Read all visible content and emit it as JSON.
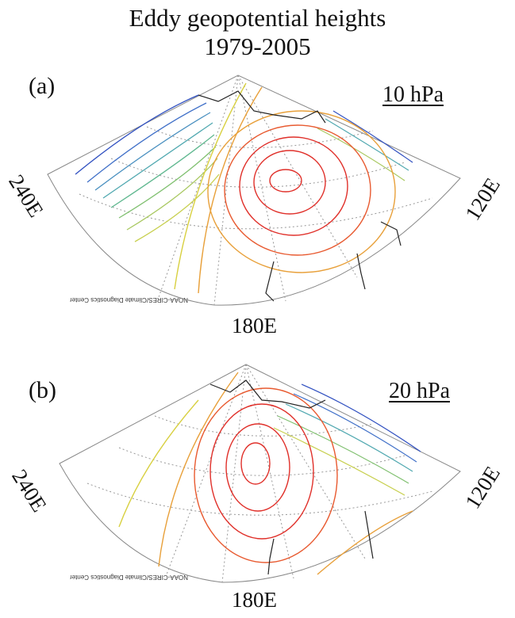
{
  "title_line1": "Eddy geopotential heights",
  "title_line2": "1979-2005",
  "panels": [
    {
      "letter": "(a)",
      "level": "10 hPa",
      "lon_left": "240E",
      "lon_right": "120E",
      "lon_bottom": "180E",
      "credit": "NOAA-CIRES/Climate Diagnostics Center",
      "colors": {
        "high": "#e0302a",
        "mid": "#e8a03a",
        "low": "#d8d040",
        "neg": "#3050c0"
      }
    },
    {
      "letter": "(b)",
      "level": "20 hPa",
      "lon_left": "240E",
      "lon_right": "120E",
      "lon_bottom": "180E",
      "credit": "NOAA-CIRES/Climate Diagnostics Center",
      "colors": {
        "high": "#e0302a",
        "mid": "#e8a03a",
        "low": "#d8d040",
        "neg": "#3050c0"
      }
    }
  ]
}
